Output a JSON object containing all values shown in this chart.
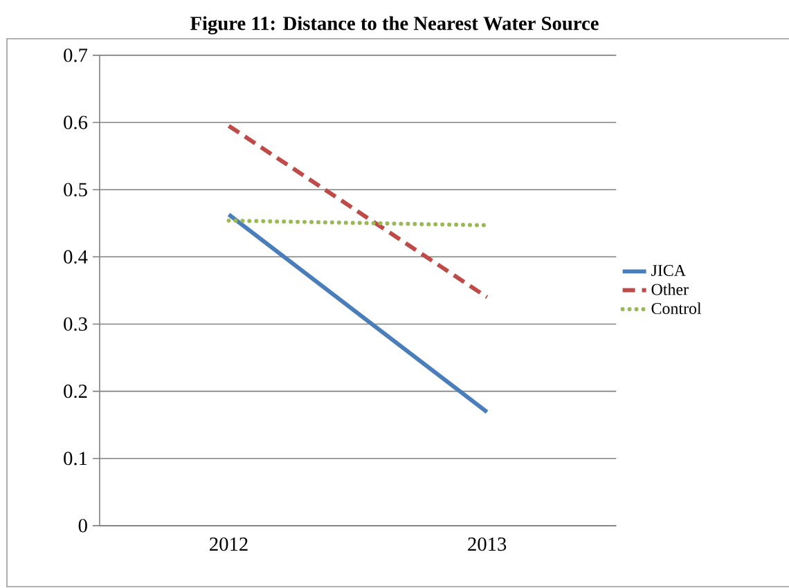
{
  "chart_data": {
    "type": "line",
    "title": "Figure 11: Distance to the Nearest Water Source",
    "categories": [
      "2012",
      "2013"
    ],
    "series": [
      {
        "name": "JICA",
        "color": "#4a7ebb",
        "values": [
          0.463,
          0.169
        ],
        "line_style": "solid"
      },
      {
        "name": "Other",
        "color": "#be4b48",
        "values": [
          0.595,
          0.34
        ],
        "line_style": "dashed"
      },
      {
        "name": "Control",
        "color": "#98b954",
        "values": [
          0.454,
          0.447
        ],
        "line_style": "dotted"
      }
    ],
    "ylim": [
      0,
      0.7
    ],
    "yticks": [
      0,
      0.1,
      0.2,
      0.3,
      0.4,
      0.5,
      0.6,
      0.7
    ],
    "grid": "y",
    "legend": "right",
    "marker": "none"
  }
}
